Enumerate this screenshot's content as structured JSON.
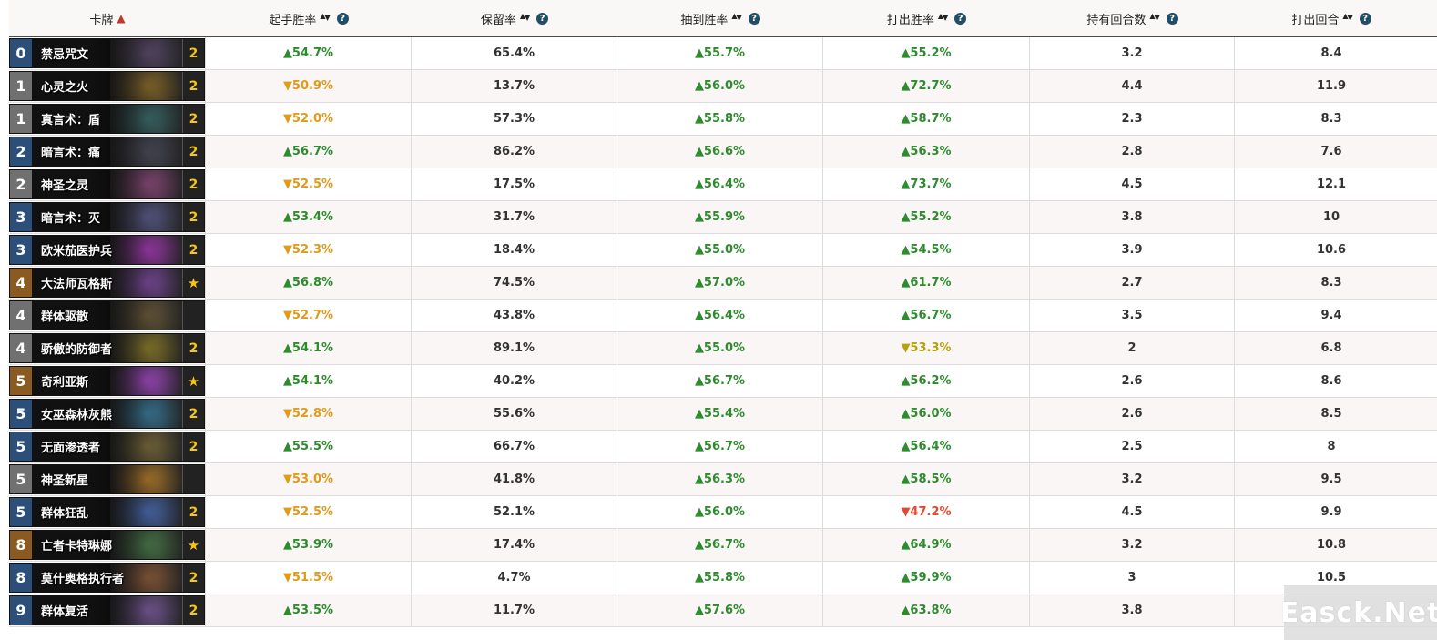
{
  "header": {
    "col_card": "卡牌",
    "col_mulligan": "起手胜率",
    "col_keep": "保留率",
    "col_drawn": "抽到胜率",
    "col_played": "打出胜率",
    "col_turns_held": "持有回合数",
    "col_turn_played": "打出回合"
  },
  "colors": {
    "up_green": "#2e8b2e",
    "down_orange": "#e09b1a",
    "down_olive": "#b5a20e",
    "down_red": "#e04a2f",
    "sort_active": "#c0392b",
    "help_icon": "#1f4e66"
  },
  "rows": [
    {
      "cost": "0",
      "name": "禁忌咒文",
      "count": "2",
      "rarity": "epic",
      "art": "#5a4a6a",
      "mull": "▲54.7%",
      "mullc": "green",
      "keep": "65.4%",
      "drawn": "▲55.7%",
      "drawnc": "green",
      "played": "▲55.2%",
      "playedc": "green",
      "held": "3.2",
      "turn": "8.4"
    },
    {
      "cost": "1",
      "name": "心灵之火",
      "count": "2",
      "rarity": "common",
      "art": "#8a6a2a",
      "mull": "▼50.9%",
      "mullc": "orange",
      "keep": "13.7%",
      "drawn": "▲56.0%",
      "drawnc": "green",
      "played": "▲72.7%",
      "playedc": "green",
      "held": "4.4",
      "turn": "11.9"
    },
    {
      "cost": "1",
      "name": "真言术：盾",
      "count": "2",
      "rarity": "common",
      "art": "#3a6a6a",
      "mull": "▼52.0%",
      "mullc": "orange",
      "keep": "57.3%",
      "drawn": "▲55.8%",
      "drawnc": "green",
      "played": "▲58.7%",
      "playedc": "green",
      "held": "2.3",
      "turn": "8.3"
    },
    {
      "cost": "2",
      "name": "暗言术：痛",
      "count": "2",
      "rarity": "common",
      "art": "#4a4a5a",
      "mull": "▲56.7%",
      "mullc": "green",
      "keep": "86.2%",
      "drawn": "▲56.6%",
      "drawnc": "green",
      "played": "▲56.3%",
      "playedc": "green",
      "held": "2.8",
      "turn": "7.6"
    },
    {
      "cost": "2",
      "name": "神圣之灵",
      "count": "2",
      "rarity": "common",
      "art": "#8a4a7a",
      "mull": "▼52.5%",
      "mullc": "orange",
      "keep": "17.5%",
      "drawn": "▲56.4%",
      "drawnc": "green",
      "played": "▲73.7%",
      "playedc": "green",
      "held": "4.5",
      "turn": "12.1"
    },
    {
      "cost": "3",
      "name": "暗言术：灭",
      "count": "2",
      "rarity": "common",
      "art": "#5a5a8a",
      "mull": "▲53.4%",
      "mullc": "green",
      "keep": "31.7%",
      "drawn": "▲55.9%",
      "drawnc": "green",
      "played": "▲55.2%",
      "playedc": "green",
      "held": "3.8",
      "turn": "10"
    },
    {
      "cost": "3",
      "name": "欧米茄医护兵",
      "count": "2",
      "rarity": "rare",
      "art": "#a03ab0",
      "mull": "▼52.3%",
      "mullc": "orange",
      "keep": "18.4%",
      "drawn": "▲55.0%",
      "drawnc": "green",
      "played": "▲54.5%",
      "playedc": "green",
      "held": "3.9",
      "turn": "10.6"
    },
    {
      "cost": "4",
      "name": "大法师瓦格斯",
      "count": "★",
      "rarity": "legendary",
      "art": "#7a4a9a",
      "mull": "▲56.8%",
      "mullc": "green",
      "keep": "74.5%",
      "drawn": "▲57.0%",
      "drawnc": "green",
      "played": "▲61.7%",
      "playedc": "green",
      "held": "2.7",
      "turn": "8.3"
    },
    {
      "cost": "4",
      "name": "群体驱散",
      "count": "",
      "rarity": "rare",
      "art": "#6a5a3a",
      "mull": "▼52.7%",
      "mullc": "orange",
      "keep": "43.8%",
      "drawn": "▲56.4%",
      "drawnc": "green",
      "played": "▲56.7%",
      "playedc": "green",
      "held": "3.5",
      "turn": "9.4"
    },
    {
      "cost": "4",
      "name": "骄傲的防御者",
      "count": "2",
      "rarity": "common",
      "art": "#8a7a2a",
      "mull": "▲54.1%",
      "mullc": "green",
      "keep": "89.1%",
      "drawn": "▲55.0%",
      "drawnc": "green",
      "played": "▼53.3%",
      "playedc": "olive",
      "held": "2",
      "turn": "6.8"
    },
    {
      "cost": "5",
      "name": "奇利亚斯",
      "count": "★",
      "rarity": "legendary",
      "art": "#a04ac0",
      "mull": "▲54.1%",
      "mullc": "green",
      "keep": "40.2%",
      "drawn": "▲56.7%",
      "drawnc": "green",
      "played": "▲56.2%",
      "playedc": "green",
      "held": "2.6",
      "turn": "8.6"
    },
    {
      "cost": "5",
      "name": "女巫森林灰熊",
      "count": "2",
      "rarity": "epic",
      "art": "#3a7a9a",
      "mull": "▼52.8%",
      "mullc": "orange",
      "keep": "55.6%",
      "drawn": "▲55.4%",
      "drawnc": "green",
      "played": "▲56.0%",
      "playedc": "green",
      "held": "2.6",
      "turn": "8.5"
    },
    {
      "cost": "5",
      "name": "无面渗透者",
      "count": "2",
      "rarity": "epic",
      "art": "#7a6a3a",
      "mull": "▲55.5%",
      "mullc": "green",
      "keep": "66.7%",
      "drawn": "▲56.7%",
      "drawnc": "green",
      "played": "▲56.4%",
      "playedc": "green",
      "held": "2.5",
      "turn": "8"
    },
    {
      "cost": "5",
      "name": "神圣新星",
      "count": "",
      "rarity": "common",
      "art": "#b07a2a",
      "mull": "▼53.0%",
      "mullc": "orange",
      "keep": "41.8%",
      "drawn": "▲56.3%",
      "drawnc": "green",
      "played": "▲58.5%",
      "playedc": "green",
      "held": "3.2",
      "turn": "9.5"
    },
    {
      "cost": "5",
      "name": "群体狂乱",
      "count": "2",
      "rarity": "common",
      "art": "#4a6ab0",
      "mull": "▼52.5%",
      "mullc": "orange",
      "keep": "52.1%",
      "drawn": "▲56.0%",
      "drawnc": "green",
      "played": "▼47.2%",
      "playedc": "red",
      "held": "4.5",
      "turn": "9.9"
    },
    {
      "cost": "8",
      "name": "亡者卡特琳娜",
      "count": "★",
      "rarity": "legendary",
      "art": "#4a7a4a",
      "mull": "▲53.9%",
      "mullc": "green",
      "keep": "17.4%",
      "drawn": "▲56.7%",
      "drawnc": "green",
      "played": "▲64.9%",
      "playedc": "green",
      "held": "3.2",
      "turn": "10.8"
    },
    {
      "cost": "8",
      "name": "莫什奥格执行者",
      "count": "2",
      "rarity": "common",
      "art": "#8a5a3a",
      "mull": "▼51.5%",
      "mullc": "orange",
      "keep": "4.7%",
      "drawn": "▲55.8%",
      "drawnc": "green",
      "played": "▲59.9%",
      "playedc": "green",
      "held": "3",
      "turn": "10.5"
    },
    {
      "cost": "9",
      "name": "群体复活",
      "count": "2",
      "rarity": "common",
      "art": "#7a5a9a",
      "mull": "▲53.5%",
      "mullc": "green",
      "keep": "11.7%",
      "drawn": "▲57.6%",
      "drawnc": "green",
      "played": "▲63.8%",
      "playedc": "green",
      "held": "3.8",
      "turn": ""
    }
  ],
  "watermark": "Easck.Net"
}
